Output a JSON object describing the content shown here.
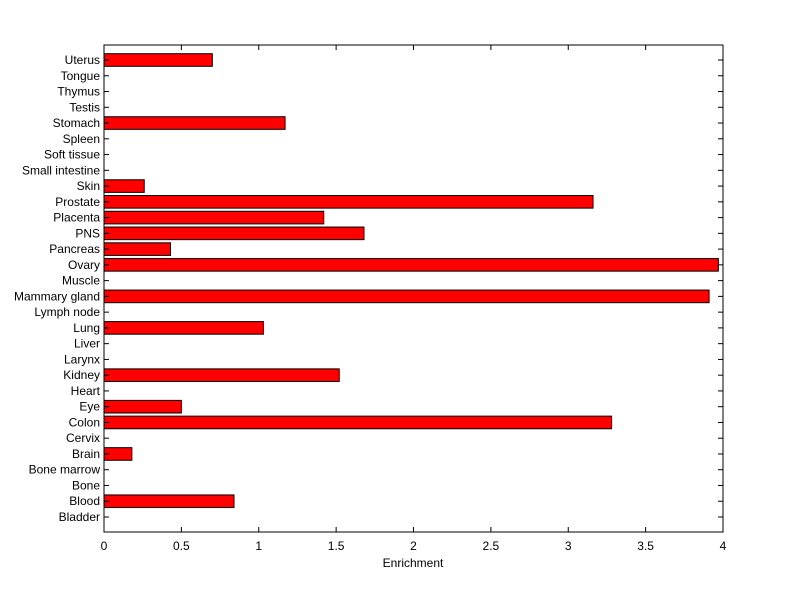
{
  "chart_data": {
    "type": "bar",
    "orientation": "horizontal",
    "title": "",
    "xlabel": "Enrichment",
    "ylabel": "",
    "xlim": [
      0,
      4
    ],
    "xticks": [
      "0",
      "0.5",
      "1",
      "1.5",
      "2",
      "2.5",
      "3",
      "3.5",
      "4"
    ],
    "grid": false,
    "bar_color": "#ff0000",
    "bar_edge_color": "#000000",
    "categories": [
      "Bladder",
      "Blood",
      "Bone",
      "Bone marrow",
      "Brain",
      "Cervix",
      "Colon",
      "Eye",
      "Heart",
      "Kidney",
      "Larynx",
      "Liver",
      "Lung",
      "Lymph node",
      "Mammary gland",
      "Muscle",
      "Ovary",
      "Pancreas",
      "PNS",
      "Placenta",
      "Prostate",
      "Skin",
      "Small intestine",
      "Soft tissue",
      "Spleen",
      "Stomach",
      "Testis",
      "Thymus",
      "Tongue",
      "Uterus"
    ],
    "values": [
      0,
      0.84,
      0,
      0,
      0.18,
      0,
      3.28,
      0.5,
      0,
      1.52,
      0,
      0,
      1.03,
      0,
      3.91,
      0,
      3.97,
      0.43,
      1.68,
      1.42,
      3.16,
      0.26,
      0,
      0,
      0,
      1.17,
      0,
      0,
      0,
      0.7
    ]
  }
}
